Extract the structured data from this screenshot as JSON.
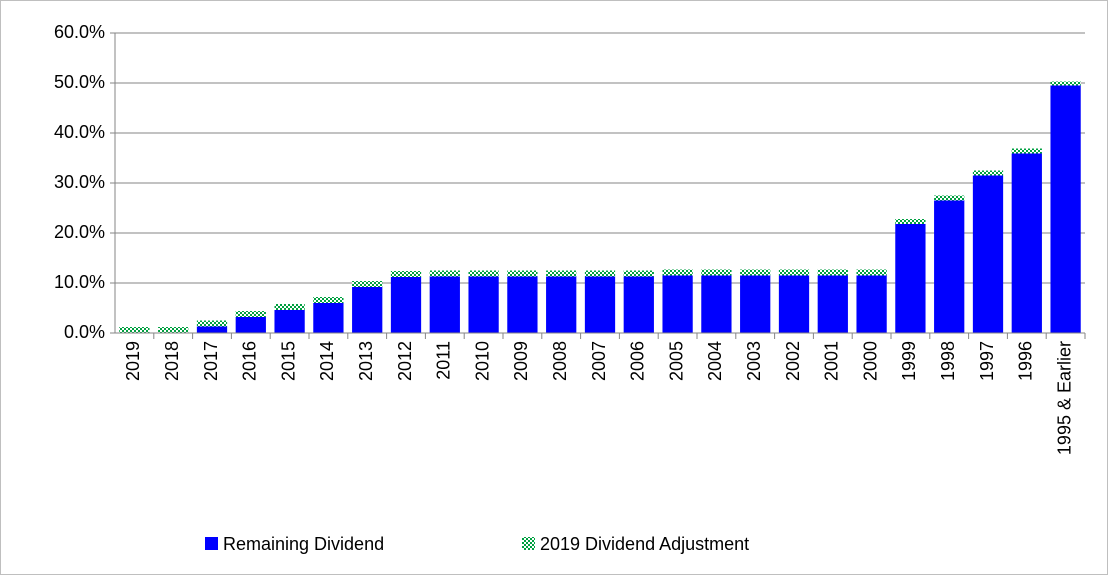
{
  "chart_data": {
    "type": "bar",
    "stacked": true,
    "categories": [
      "2019",
      "2018",
      "2017",
      "2016",
      "2015",
      "2014",
      "2013",
      "2012",
      "2011",
      "2010",
      "2009",
      "2008",
      "2007",
      "2006",
      "2005",
      "2004",
      "2003",
      "2002",
      "2001",
      "2000",
      "1999",
      "1998",
      "1997",
      "1996",
      "1995 & Earlier"
    ],
    "series": [
      {
        "name": "Remaining Dividend",
        "color": "#0000ff",
        "pattern": "solid",
        "values": [
          0,
          0,
          1.3,
          3.2,
          4.6,
          6.0,
          9.2,
          11.2,
          11.3,
          11.3,
          11.3,
          11.3,
          11.3,
          11.3,
          11.5,
          11.5,
          11.5,
          11.5,
          11.5,
          11.5,
          21.8,
          26.5,
          31.5,
          35.9,
          49.5
        ]
      },
      {
        "name": "2019 Dividend Adjustment",
        "color": "#00a040",
        "pattern": "checker",
        "values": [
          1.2,
          1.2,
          1.2,
          1.2,
          1.2,
          1.2,
          1.2,
          1.2,
          1.2,
          1.2,
          1.2,
          1.2,
          1.2,
          1.2,
          1.2,
          1.2,
          1.2,
          1.2,
          1.2,
          1.2,
          1.0,
          1.0,
          1.0,
          1.0,
          0.8
        ]
      }
    ],
    "ylim": [
      0,
      60
    ],
    "yticks": [
      {
        "value": 0,
        "label": "0.0%"
      },
      {
        "value": 10,
        "label": "10.0%"
      },
      {
        "value": 20,
        "label": "20.0%"
      },
      {
        "value": 30,
        "label": "30.0%"
      },
      {
        "value": 40,
        "label": "40.0%"
      },
      {
        "value": 50,
        "label": "50.0%"
      },
      {
        "value": 60,
        "label": "60.0%"
      }
    ],
    "grid": true,
    "legend": "bottom"
  }
}
